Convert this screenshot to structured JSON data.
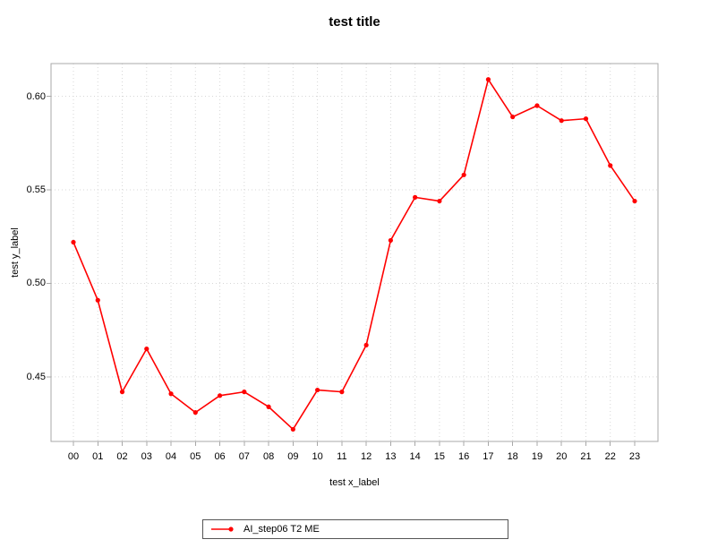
{
  "title": "test title",
  "axes": {
    "x_label": "test x_label",
    "y_label": "test y_label",
    "x_ticks": [
      "00",
      "01",
      "02",
      "03",
      "04",
      "05",
      "06",
      "07",
      "08",
      "09",
      "10",
      "11",
      "12",
      "13",
      "14",
      "15",
      "16",
      "17",
      "18",
      "19",
      "20",
      "21",
      "22",
      "23"
    ],
    "y_ticks": [
      "0.45",
      "0.50",
      "0.55",
      "0.60"
    ]
  },
  "legend": {
    "label": "AI_step06 T2 ME"
  },
  "colors": {
    "series": "#ff0000",
    "grid": "#d7d7d7",
    "frame": "#a8a8a8",
    "legend_border": "#555555",
    "text": "#000000",
    "background": "#ffffff"
  },
  "chart_data": {
    "type": "line",
    "title": "test title",
    "xlabel": "test x_label",
    "ylabel": "test y_label",
    "x": [
      "00",
      "01",
      "02",
      "03",
      "04",
      "05",
      "06",
      "07",
      "08",
      "09",
      "10",
      "11",
      "12",
      "13",
      "14",
      "15",
      "16",
      "17",
      "18",
      "19",
      "20",
      "21",
      "22",
      "23"
    ],
    "series": [
      {
        "name": "AI_step06 T2 ME",
        "values": [
          0.522,
          0.491,
          0.442,
          0.465,
          0.441,
          0.431,
          0.44,
          0.442,
          0.434,
          0.422,
          0.443,
          0.442,
          0.467,
          0.523,
          0.546,
          0.544,
          0.558,
          0.609,
          0.589,
          0.595,
          0.587,
          0.588,
          0.563,
          0.544
        ]
      }
    ],
    "ylim": [
      0.4155,
      0.6175
    ],
    "yticks": [
      0.45,
      0.5,
      0.55,
      0.6
    ],
    "grid": true,
    "grid_style": "dotted",
    "marker": "circle",
    "line_color": "#ff0000",
    "legend_position": "bottom-center"
  }
}
